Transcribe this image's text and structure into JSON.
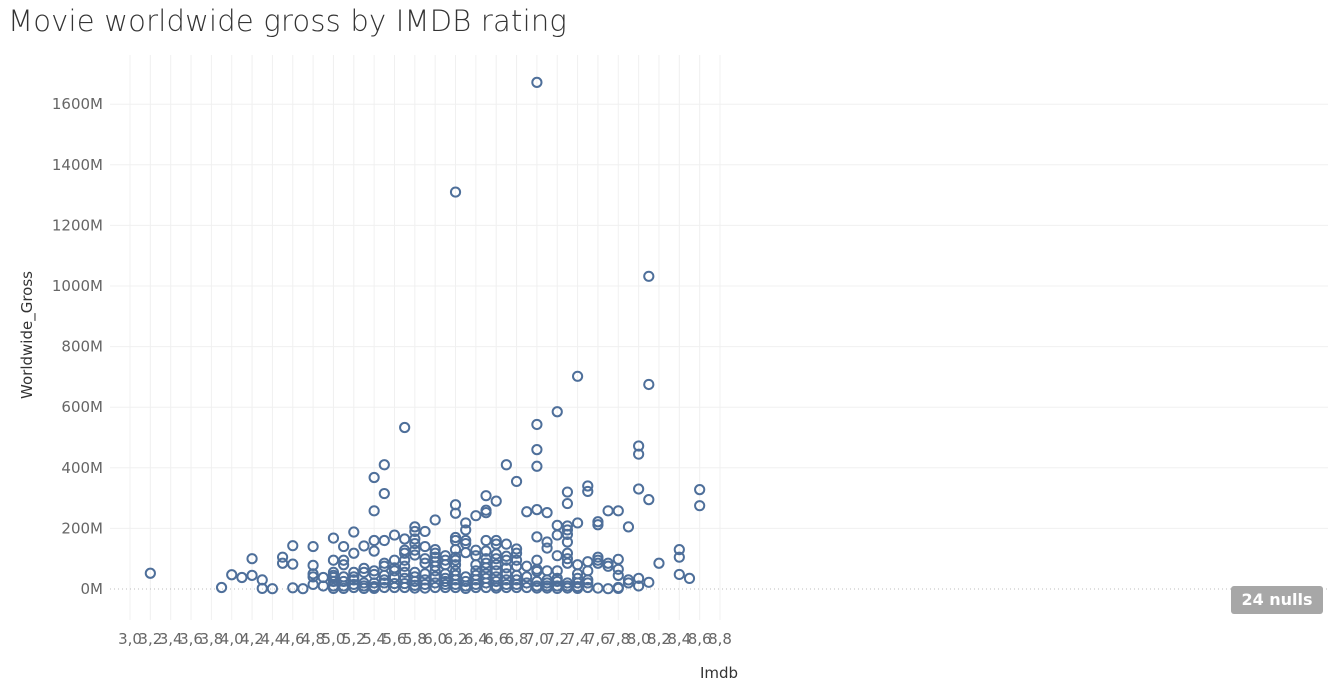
{
  "title": "Movie worldwide gross by IMDB rating",
  "nulls_badge": "24 nulls",
  "chart_data": {
    "type": "scatter",
    "title": "Movie worldwide gross by IMDB rating",
    "xlabel": "Imdb",
    "ylabel": "Worldwide_Gross",
    "xlim": [
      2.9,
      8.9
    ],
    "ylim": [
      -100,
      1750
    ],
    "xticks": [
      3.0,
      3.2,
      3.4,
      3.6,
      3.8,
      4.0,
      4.2,
      4.4,
      4.6,
      4.8,
      5.0,
      5.2,
      5.4,
      5.6,
      5.8,
      6.0,
      6.2,
      6.4,
      6.6,
      6.8,
      7.0,
      7.2,
      7.4,
      7.6,
      7.8,
      8.0,
      8.2,
      8.4,
      8.6,
      8.8
    ],
    "xtick_labels": [
      "3,0",
      "3,2",
      "3,4",
      "3,6",
      "3,8",
      "4,0",
      "4,2",
      "4,4",
      "4,6",
      "4,8",
      "5,0",
      "5,2",
      "5,4",
      "5,6",
      "5,8",
      "6,0",
      "6,2",
      "6,4",
      "6,6",
      "6,8",
      "7,0",
      "7,2",
      "7,4",
      "7,6",
      "7,8",
      "8,0",
      "8,2",
      "8,4",
      "8,6",
      "8,8"
    ],
    "yticks": [
      0,
      200,
      400,
      600,
      800,
      1000,
      1200,
      1400,
      1600
    ],
    "ytick_labels": [
      "0M",
      "200M",
      "400M",
      "600M",
      "800M",
      "1000M",
      "1200M",
      "1400M",
      "1600M"
    ],
    "grid": true,
    "marker_color": "#4e6f9a",
    "null_count": 24,
    "points": [
      [
        3.2,
        52
      ],
      [
        3.9,
        5
      ],
      [
        4.0,
        47
      ],
      [
        4.1,
        38
      ],
      [
        4.2,
        100
      ],
      [
        4.2,
        45
      ],
      [
        4.3,
        30
      ],
      [
        4.3,
        2
      ],
      [
        4.4,
        1
      ],
      [
        4.5,
        105
      ],
      [
        4.5,
        85
      ],
      [
        4.6,
        143
      ],
      [
        4.6,
        82
      ],
      [
        4.6,
        4
      ],
      [
        4.7,
        1
      ],
      [
        4.8,
        140
      ],
      [
        4.8,
        78
      ],
      [
        4.8,
        50
      ],
      [
        4.8,
        40
      ],
      [
        4.8,
        15
      ],
      [
        4.9,
        38
      ],
      [
        4.9,
        10
      ],
      [
        5.0,
        168
      ],
      [
        5.0,
        95
      ],
      [
        5.0,
        55
      ],
      [
        5.0,
        45
      ],
      [
        5.0,
        38
      ],
      [
        5.0,
        25
      ],
      [
        5.0,
        10
      ],
      [
        5.0,
        2
      ],
      [
        5.1,
        140
      ],
      [
        5.1,
        95
      ],
      [
        5.1,
        80
      ],
      [
        5.1,
        40
      ],
      [
        5.1,
        25
      ],
      [
        5.1,
        10
      ],
      [
        5.1,
        2
      ],
      [
        5.2,
        188
      ],
      [
        5.2,
        118
      ],
      [
        5.2,
        55
      ],
      [
        5.2,
        40
      ],
      [
        5.2,
        30
      ],
      [
        5.2,
        15
      ],
      [
        5.2,
        5
      ],
      [
        5.3,
        142
      ],
      [
        5.3,
        68
      ],
      [
        5.3,
        55
      ],
      [
        5.3,
        20
      ],
      [
        5.3,
        10
      ],
      [
        5.3,
        2
      ],
      [
        5.4,
        368
      ],
      [
        5.4,
        258
      ],
      [
        5.4,
        160
      ],
      [
        5.4,
        125
      ],
      [
        5.4,
        60
      ],
      [
        5.4,
        48
      ],
      [
        5.4,
        20
      ],
      [
        5.4,
        8
      ],
      [
        5.4,
        2
      ],
      [
        5.5,
        410
      ],
      [
        5.5,
        315
      ],
      [
        5.5,
        160
      ],
      [
        5.5,
        85
      ],
      [
        5.5,
        75
      ],
      [
        5.5,
        45
      ],
      [
        5.5,
        30
      ],
      [
        5.5,
        20
      ],
      [
        5.5,
        5
      ],
      [
        5.6,
        178
      ],
      [
        5.6,
        95
      ],
      [
        5.6,
        70
      ],
      [
        5.6,
        60
      ],
      [
        5.6,
        38
      ],
      [
        5.6,
        18
      ],
      [
        5.6,
        5
      ],
      [
        5.7,
        533
      ],
      [
        5.7,
        165
      ],
      [
        5.7,
        128
      ],
      [
        5.7,
        118
      ],
      [
        5.7,
        95
      ],
      [
        5.7,
        75
      ],
      [
        5.7,
        55
      ],
      [
        5.7,
        35
      ],
      [
        5.7,
        18
      ],
      [
        5.7,
        5
      ],
      [
        5.8,
        205
      ],
      [
        5.8,
        190
      ],
      [
        5.8,
        165
      ],
      [
        5.8,
        150
      ],
      [
        5.8,
        128
      ],
      [
        5.8,
        112
      ],
      [
        5.8,
        55
      ],
      [
        5.8,
        40
      ],
      [
        5.8,
        25
      ],
      [
        5.8,
        12
      ],
      [
        5.8,
        3
      ],
      [
        5.9,
        190
      ],
      [
        5.9,
        140
      ],
      [
        5.9,
        100
      ],
      [
        5.9,
        85
      ],
      [
        5.9,
        50
      ],
      [
        5.9,
        30
      ],
      [
        5.9,
        15
      ],
      [
        5.9,
        3
      ],
      [
        6.0,
        228
      ],
      [
        6.0,
        130
      ],
      [
        6.0,
        118
      ],
      [
        6.0,
        105
      ],
      [
        6.0,
        90
      ],
      [
        6.0,
        75
      ],
      [
        6.0,
        60
      ],
      [
        6.0,
        40
      ],
      [
        6.0,
        20
      ],
      [
        6.0,
        5
      ],
      [
        6.1,
        110
      ],
      [
        6.1,
        95
      ],
      [
        6.1,
        80
      ],
      [
        6.1,
        50
      ],
      [
        6.1,
        35
      ],
      [
        6.1,
        25
      ],
      [
        6.1,
        15
      ],
      [
        6.1,
        5
      ],
      [
        6.2,
        1310
      ],
      [
        6.2,
        278
      ],
      [
        6.2,
        250
      ],
      [
        6.2,
        170
      ],
      [
        6.2,
        160
      ],
      [
        6.2,
        130
      ],
      [
        6.2,
        105
      ],
      [
        6.2,
        95
      ],
      [
        6.2,
        80
      ],
      [
        6.2,
        60
      ],
      [
        6.2,
        45
      ],
      [
        6.2,
        30
      ],
      [
        6.2,
        15
      ],
      [
        6.2,
        5
      ],
      [
        6.3,
        218
      ],
      [
        6.3,
        195
      ],
      [
        6.3,
        160
      ],
      [
        6.3,
        150
      ],
      [
        6.3,
        120
      ],
      [
        6.3,
        40
      ],
      [
        6.3,
        25
      ],
      [
        6.3,
        10
      ],
      [
        6.3,
        2
      ],
      [
        6.4,
        242
      ],
      [
        6.4,
        128
      ],
      [
        6.4,
        110
      ],
      [
        6.4,
        80
      ],
      [
        6.4,
        60
      ],
      [
        6.4,
        45
      ],
      [
        6.4,
        30
      ],
      [
        6.4,
        15
      ],
      [
        6.4,
        5
      ],
      [
        6.5,
        308
      ],
      [
        6.5,
        260
      ],
      [
        6.5,
        252
      ],
      [
        6.5,
        160
      ],
      [
        6.5,
        125
      ],
      [
        6.5,
        100
      ],
      [
        6.5,
        85
      ],
      [
        6.5,
        70
      ],
      [
        6.5,
        50
      ],
      [
        6.5,
        35
      ],
      [
        6.5,
        20
      ],
      [
        6.5,
        5
      ],
      [
        6.6,
        290
      ],
      [
        6.6,
        160
      ],
      [
        6.6,
        148
      ],
      [
        6.6,
        115
      ],
      [
        6.6,
        100
      ],
      [
        6.6,
        80
      ],
      [
        6.6,
        60
      ],
      [
        6.6,
        40
      ],
      [
        6.6,
        25
      ],
      [
        6.6,
        10
      ],
      [
        6.6,
        3
      ],
      [
        6.7,
        410
      ],
      [
        6.7,
        148
      ],
      [
        6.7,
        108
      ],
      [
        6.7,
        95
      ],
      [
        6.7,
        70
      ],
      [
        6.7,
        50
      ],
      [
        6.7,
        30
      ],
      [
        6.7,
        15
      ],
      [
        6.7,
        5
      ],
      [
        6.8,
        355
      ],
      [
        6.8,
        132
      ],
      [
        6.8,
        118
      ],
      [
        6.8,
        95
      ],
      [
        6.8,
        75
      ],
      [
        6.8,
        45
      ],
      [
        6.8,
        30
      ],
      [
        6.8,
        15
      ],
      [
        6.8,
        5
      ],
      [
        6.9,
        255
      ],
      [
        6.9,
        75
      ],
      [
        6.9,
        40
      ],
      [
        6.9,
        20
      ],
      [
        6.9,
        5
      ],
      [
        7.0,
        1672
      ],
      [
        7.0,
        543
      ],
      [
        7.0,
        460
      ],
      [
        7.0,
        405
      ],
      [
        7.0,
        262
      ],
      [
        7.0,
        172
      ],
      [
        7.0,
        95
      ],
      [
        7.0,
        65
      ],
      [
        7.0,
        58
      ],
      [
        7.0,
        25
      ],
      [
        7.0,
        10
      ],
      [
        7.0,
        3
      ],
      [
        7.1,
        252
      ],
      [
        7.1,
        155
      ],
      [
        7.1,
        135
      ],
      [
        7.1,
        60
      ],
      [
        7.1,
        30
      ],
      [
        7.1,
        20
      ],
      [
        7.1,
        10
      ],
      [
        7.1,
        3
      ],
      [
        7.2,
        585
      ],
      [
        7.2,
        210
      ],
      [
        7.2,
        178
      ],
      [
        7.2,
        110
      ],
      [
        7.2,
        60
      ],
      [
        7.2,
        35
      ],
      [
        7.2,
        25
      ],
      [
        7.2,
        10
      ],
      [
        7.2,
        2
      ],
      [
        7.3,
        320
      ],
      [
        7.3,
        282
      ],
      [
        7.3,
        208
      ],
      [
        7.3,
        195
      ],
      [
        7.3,
        180
      ],
      [
        7.3,
        155
      ],
      [
        7.3,
        118
      ],
      [
        7.3,
        100
      ],
      [
        7.3,
        85
      ],
      [
        7.3,
        20
      ],
      [
        7.3,
        10
      ],
      [
        7.3,
        3
      ],
      [
        7.4,
        702
      ],
      [
        7.4,
        218
      ],
      [
        7.4,
        80
      ],
      [
        7.4,
        50
      ],
      [
        7.4,
        35
      ],
      [
        7.4,
        20
      ],
      [
        7.4,
        8
      ],
      [
        7.4,
        2
      ],
      [
        7.5,
        340
      ],
      [
        7.5,
        322
      ],
      [
        7.5,
        90
      ],
      [
        7.5,
        60
      ],
      [
        7.5,
        30
      ],
      [
        7.5,
        20
      ],
      [
        7.5,
        5
      ],
      [
        7.6,
        222
      ],
      [
        7.6,
        212
      ],
      [
        7.6,
        105
      ],
      [
        7.6,
        95
      ],
      [
        7.6,
        85
      ],
      [
        7.6,
        3
      ],
      [
        7.7,
        258
      ],
      [
        7.7,
        85
      ],
      [
        7.7,
        75
      ],
      [
        7.7,
        1
      ],
      [
        7.8,
        258
      ],
      [
        7.8,
        98
      ],
      [
        7.8,
        65
      ],
      [
        7.8,
        45
      ],
      [
        7.8,
        5
      ],
      [
        7.8,
        2
      ],
      [
        7.9,
        205
      ],
      [
        7.9,
        30
      ],
      [
        7.9,
        20
      ],
      [
        8.0,
        472
      ],
      [
        8.0,
        445
      ],
      [
        8.0,
        330
      ],
      [
        8.0,
        35
      ],
      [
        8.0,
        10
      ],
      [
        8.1,
        1032
      ],
      [
        8.1,
        675
      ],
      [
        8.1,
        295
      ],
      [
        8.1,
        22
      ],
      [
        8.2,
        85
      ],
      [
        8.4,
        130
      ],
      [
        8.4,
        105
      ],
      [
        8.4,
        48
      ],
      [
        8.5,
        35
      ],
      [
        8.6,
        328
      ],
      [
        8.6,
        275
      ]
    ]
  }
}
